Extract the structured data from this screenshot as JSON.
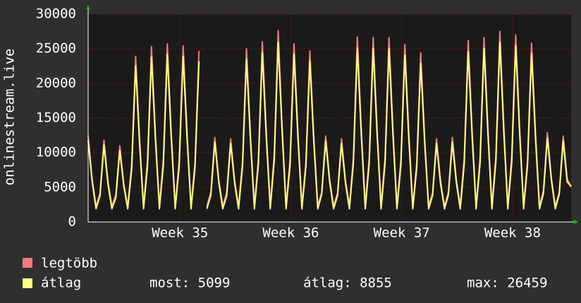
{
  "chart_data": {
    "type": "line",
    "y_label": "onlinestream.live",
    "x": [
      0,
      0.25,
      0.5,
      0.75,
      1,
      1.25,
      1.5,
      1.75,
      2,
      2.25,
      2.5,
      2.75,
      3,
      3.25,
      3.5,
      3.75,
      4,
      4.25,
      4.5,
      4.75,
      5,
      5.25,
      5.5,
      5.75,
      6,
      6.25,
      6.5,
      6.75,
      7,
      7.25,
      7.5,
      7.75,
      8,
      8.25,
      8.5,
      8.75,
      9,
      9.25,
      9.5,
      9.75,
      10,
      10.25,
      10.5,
      10.75,
      11,
      11.25,
      11.5,
      11.75,
      12,
      12.25,
      12.5,
      12.75,
      13,
      13.25,
      13.5,
      13.75,
      14,
      14.25,
      14.5,
      14.75,
      15,
      15.25,
      15.5,
      15.75,
      16,
      16.25,
      16.5,
      16.75,
      17,
      17.25,
      17.5,
      17.75,
      18,
      18.25,
      18.5,
      18.75,
      19,
      19.25,
      19.5,
      19.75,
      20,
      20.25,
      20.5,
      20.75,
      21,
      21.25,
      21.5,
      21.75,
      22,
      22.25,
      22.5,
      22.75,
      23,
      23.25,
      23.5,
      23.75,
      24,
      24.25,
      24.5,
      24.75,
      25,
      25.25,
      25.5,
      25.75,
      26,
      26.25,
      26.5,
      26.75,
      27,
      27.25,
      27.5,
      27.75,
      28,
      28.25,
      28.5,
      28.75,
      29,
      29.25,
      29.5,
      29.75,
      30,
      30.25,
      30.5
    ],
    "series": [
      {
        "name": "legtöbb",
        "color": "#f47c7c",
        "values": [
          12500,
          6200,
          2300,
          4100,
          11800,
          5900,
          2300,
          3900,
          11000,
          5500,
          2300,
          8400,
          23900,
          12000,
          2300,
          8900,
          25300,
          12600,
          2300,
          9000,
          25700,
          12800,
          2300,
          8900,
          25400,
          12700,
          2300,
          8600,
          24700,
          null,
          2300,
          4300,
          12200,
          6100,
          2300,
          4200,
          12000,
          6000,
          2300,
          8800,
          25000,
          12500,
          2300,
          9100,
          26000,
          13000,
          2300,
          9700,
          27600,
          13800,
          2300,
          9000,
          25700,
          12800,
          2300,
          8600,
          24700,
          12300,
          2300,
          4300,
          12400,
          6200,
          2300,
          4200,
          12000,
          6000,
          2300,
          9300,
          26700,
          13300,
          2300,
          9300,
          26600,
          13300,
          2300,
          9300,
          26600,
          13300,
          2300,
          9000,
          25600,
          12800,
          2300,
          8500,
          24400,
          12200,
          2300,
          4200,
          12000,
          6000,
          2300,
          4300,
          12200,
          6100,
          2300,
          9200,
          26200,
          13100,
          2300,
          9300,
          26600,
          13300,
          2300,
          9600,
          27500,
          13800,
          2300,
          9500,
          27000,
          13500,
          2300,
          9000,
          25800,
          12900,
          2300,
          4500,
          12900,
          6400,
          2300,
          4300,
          12400,
          6200,
          5099
        ]
      },
      {
        "name": "átlag",
        "color": "#ffff80",
        "values": [
          11800,
          5900,
          1900,
          3800,
          11100,
          5500,
          1900,
          3500,
          10300,
          5200,
          1900,
          7600,
          22500,
          11200,
          1900,
          8100,
          23800,
          11900,
          1900,
          8200,
          24200,
          12100,
          1900,
          8100,
          23900,
          11900,
          1900,
          7900,
          23200,
          null,
          1900,
          3900,
          11500,
          5700,
          1900,
          3800,
          11300,
          5600,
          1900,
          8000,
          23500,
          11800,
          1900,
          8300,
          24400,
          12200,
          1900,
          8800,
          25900,
          13000,
          1900,
          8200,
          24200,
          12100,
          1900,
          7900,
          23200,
          11600,
          1900,
          4000,
          11700,
          5800,
          1900,
          3800,
          11300,
          5600,
          1900,
          8500,
          25100,
          12500,
          1900,
          8500,
          25000,
          12500,
          1900,
          8500,
          25000,
          12500,
          1900,
          8200,
          24100,
          12000,
          1900,
          7800,
          22900,
          11500,
          1900,
          3800,
          11300,
          5600,
          1900,
          3900,
          11500,
          5700,
          1900,
          8400,
          24600,
          12300,
          1900,
          8500,
          25000,
          12500,
          1900,
          8800,
          25900,
          12900,
          1900,
          8600,
          25400,
          12700,
          1900,
          8300,
          24300,
          12100,
          1900,
          4100,
          12100,
          6100,
          1900,
          4000,
          11700,
          5800,
          5099
        ]
      }
    ],
    "xlim": [
      0,
      30.5
    ],
    "xticks": [
      {
        "value": 5.8,
        "label": "Week 35"
      },
      {
        "value": 12.8,
        "label": "Week 36"
      },
      {
        "value": 19.8,
        "label": "Week 37"
      },
      {
        "value": 26.8,
        "label": "Week 38"
      }
    ],
    "ylim": [
      0,
      30000
    ],
    "yticks": [
      0,
      5000,
      10000,
      15000,
      20000,
      25000,
      30000
    ],
    "grid": true,
    "stats": [
      "most: 5099",
      "átlag: 8855",
      "max: 26459"
    ]
  }
}
